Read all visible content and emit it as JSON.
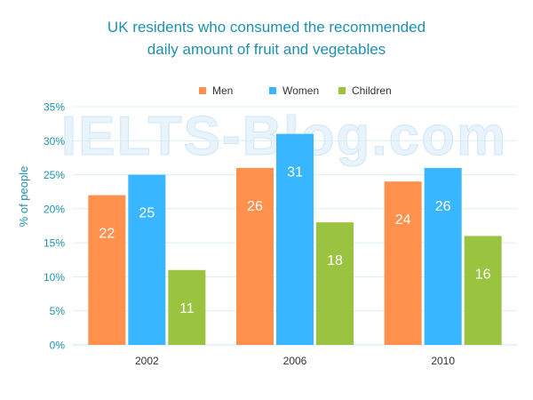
{
  "watermark": "IELTS-Blog.com",
  "chart_data": {
    "type": "bar",
    "title": [
      "UK residents who consumed the recommended",
      "daily amount of fruit and vegetables"
    ],
    "xlabel": "",
    "ylabel": "% of people",
    "categories": [
      "2002",
      "2006",
      "2010"
    ],
    "series": [
      {
        "name": "Men",
        "color": "#ff914d",
        "values": [
          22,
          26,
          24
        ]
      },
      {
        "name": "Women",
        "color": "#38b6ff",
        "values": [
          25,
          31,
          26
        ]
      },
      {
        "name": "Children",
        "color": "#9ac440",
        "values": [
          11,
          18,
          16
        ]
      }
    ],
    "ylim": [
      0,
      35
    ],
    "yticks": [
      "0%",
      "5%",
      "10%",
      "15%",
      "20%",
      "25%",
      "30%",
      "35%"
    ],
    "grid": true,
    "legend_position": "top-center",
    "data_labels": true
  }
}
